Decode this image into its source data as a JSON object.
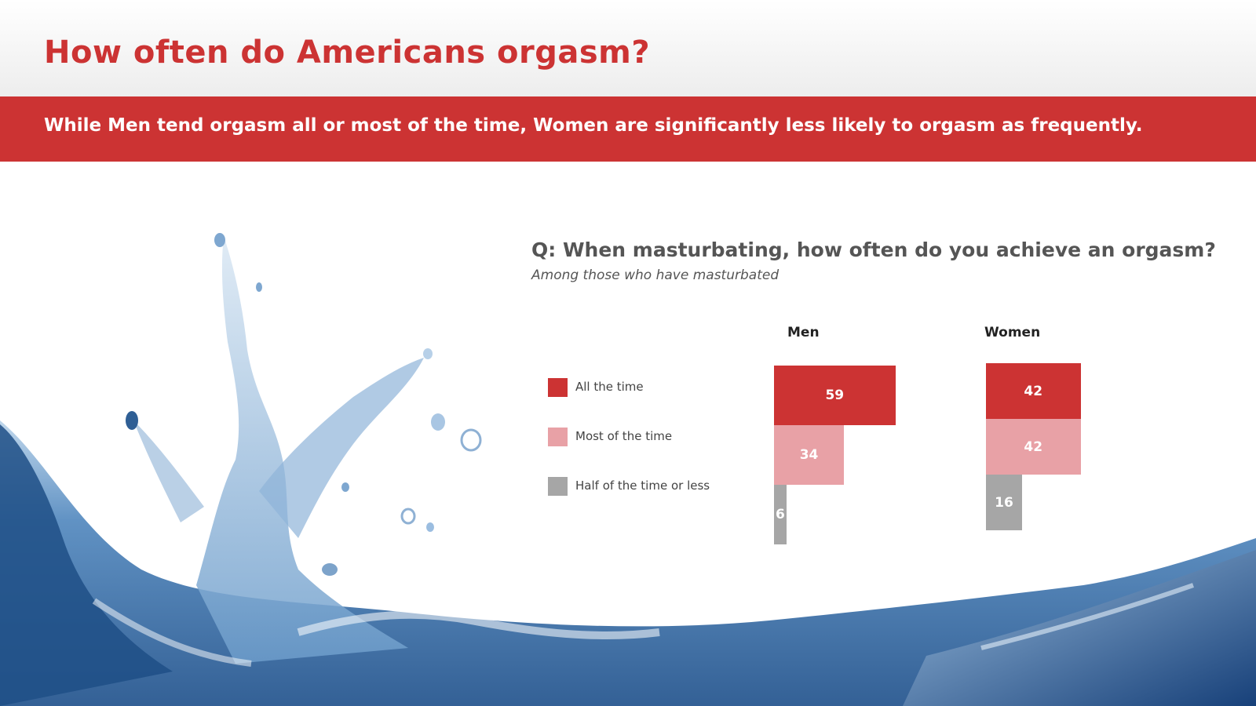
{
  "header": {
    "title": "How often do Americans orgasm?",
    "subtitle": "While Men tend orgasm all or most of the time, Women are significantly less likely to orgasm as frequently."
  },
  "background": {
    "image": "water-splash"
  },
  "colors": {
    "title": "#cc3333",
    "banner": "#cc3333",
    "all_the_time": "#cc3333",
    "most_of_the_time": "#e8a1a6",
    "half_or_less": "#a6a6a6"
  },
  "chart_data": {
    "type": "bar",
    "title": "Q: When masturbating, how often do you achieve an orgasm?",
    "subtitle": "Among those who have masturbated",
    "categories": [
      "Men",
      "Women"
    ],
    "series": [
      {
        "name": "All the time",
        "values": [
          59,
          42
        ],
        "color": "#cc3333"
      },
      {
        "name": "Most of the time",
        "values": [
          34,
          42
        ],
        "color": "#e8a1a6"
      },
      {
        "name": "Half of the time or less",
        "values": [
          6,
          16
        ],
        "color": "#a6a6a6"
      }
    ],
    "unit": "percent",
    "legend_position": "left",
    "grid": false
  }
}
